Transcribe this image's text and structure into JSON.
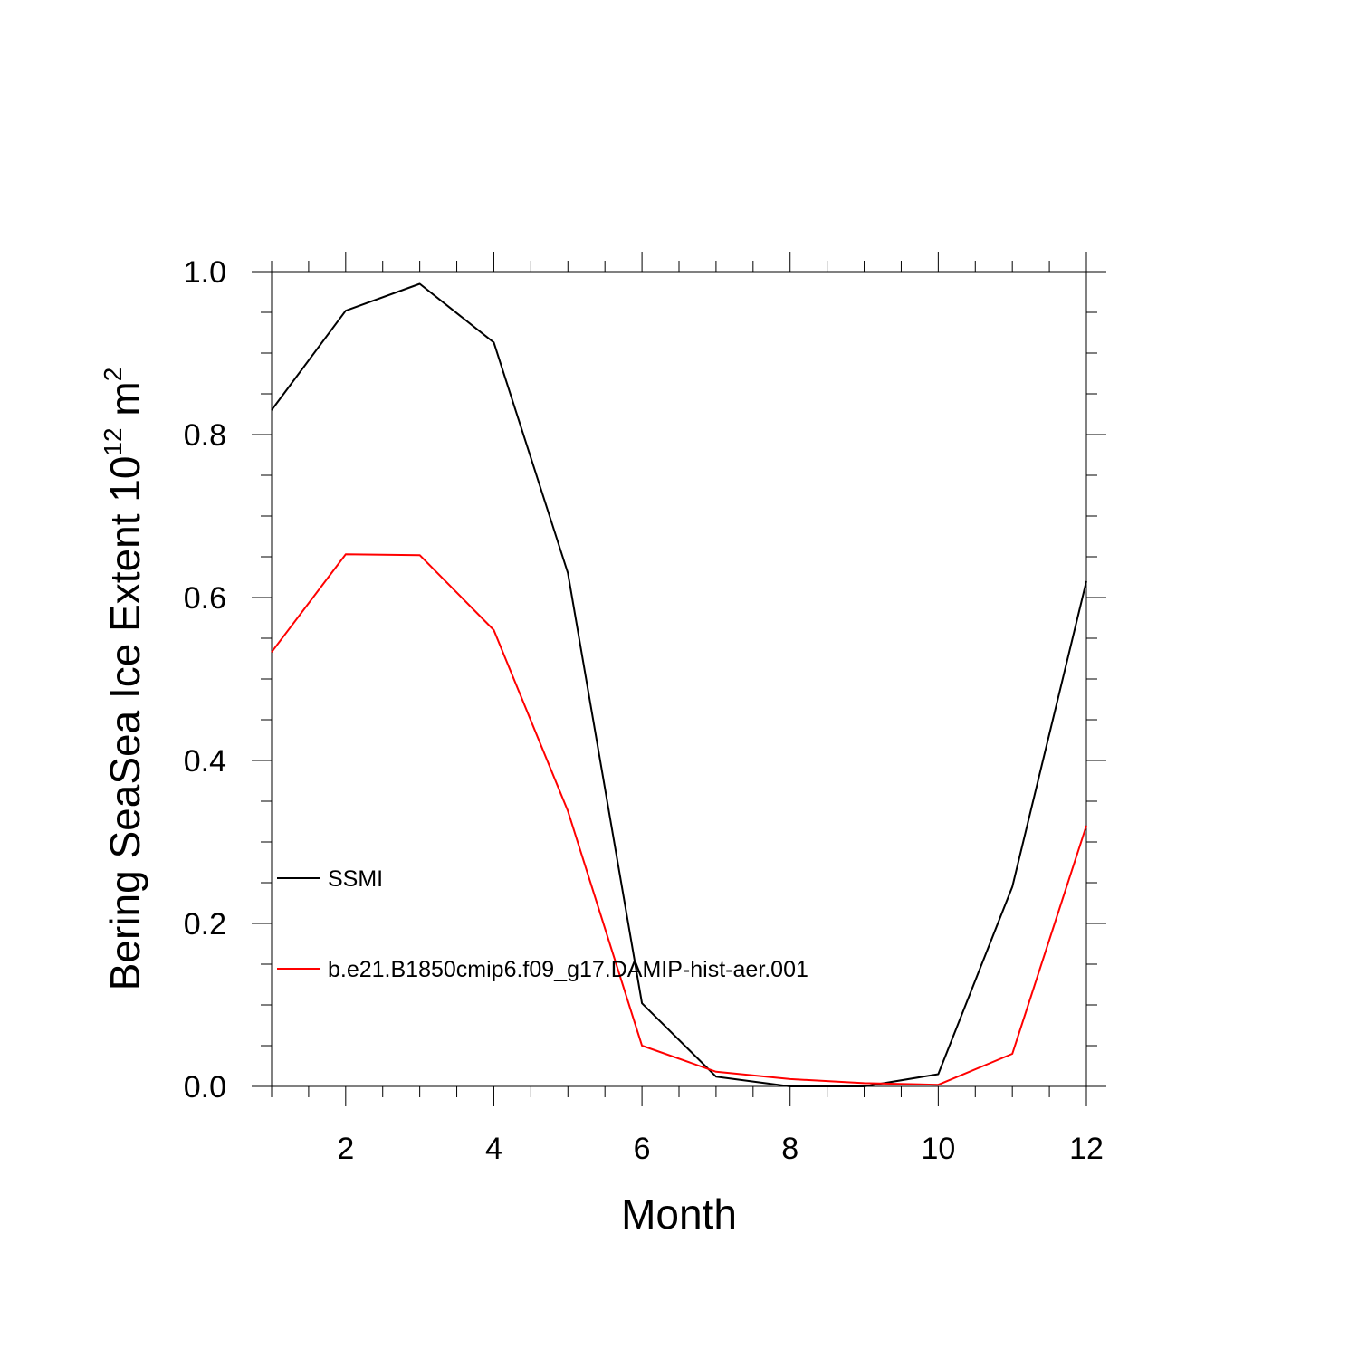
{
  "chart_data": {
    "type": "line",
    "xlabel": "Month",
    "ylabel_main": "Bering SeaSea Ice Extent 10",
    "ylabel_exp": "12",
    "ylabel_unit": " m",
    "ylabel_unit_exp": "2",
    "xlim": [
      1,
      12
    ],
    "ylim": [
      0,
      1
    ],
    "x_ticks": [
      2,
      4,
      6,
      8,
      10,
      12
    ],
    "x_tick_labels": [
      "2",
      "4",
      "6",
      "8",
      "10",
      "12"
    ],
    "y_ticks": [
      0,
      0.2,
      0.4,
      0.6,
      0.8,
      1.0
    ],
    "y_tick_labels": [
      "0.0",
      "0.2",
      "0.4",
      "0.6",
      "0.8",
      "1.0"
    ],
    "grid": false,
    "legend_position": "left-lower-middle",
    "x": [
      1,
      2,
      3,
      4,
      5,
      6,
      7,
      8,
      9,
      10,
      11,
      12
    ],
    "series": [
      {
        "name": "SSMI",
        "color": "#000000",
        "values": [
          0.83,
          0.952,
          0.985,
          0.913,
          0.63,
          0.102,
          0.012,
          0.0,
          0.0,
          0.015,
          0.245,
          0.62
        ]
      },
      {
        "name": "b.e21.B1850cmip6.f09_g17.DAMIP-hist-aer.001",
        "color": "#ff0000",
        "values": [
          0.533,
          0.653,
          0.652,
          0.56,
          0.338,
          0.05,
          0.018,
          0.009,
          0.004,
          0.002,
          0.04,
          0.32
        ]
      }
    ]
  }
}
